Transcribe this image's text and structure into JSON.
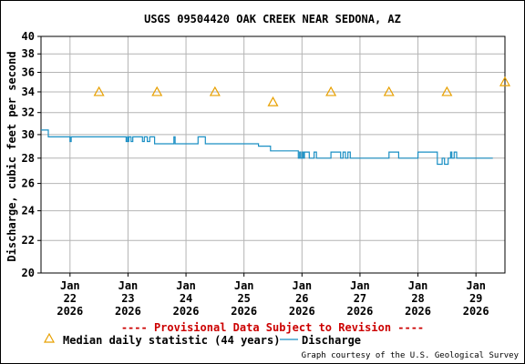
{
  "chart_data": {
    "type": "line",
    "title": "USGS 09504420 OAK CREEK NEAR SEDONA, AZ",
    "xlabel": "",
    "ylabel": "Discharge, cubic feet per second",
    "y_scale": "log",
    "ylim": [
      20,
      40
    ],
    "xlim": [
      "2026-01-21T12:00",
      "2026-01-29T12:00"
    ],
    "y_ticks": [
      20,
      22,
      24,
      26,
      28,
      30,
      32,
      34,
      36,
      38,
      40
    ],
    "x_ticks": [
      {
        "at": "2026-01-22T00:00",
        "line1": "Jan",
        "line2": "22",
        "line3": "2026"
      },
      {
        "at": "2026-01-23T00:00",
        "line1": "Jan",
        "line2": "23",
        "line3": "2026"
      },
      {
        "at": "2026-01-24T00:00",
        "line1": "Jan",
        "line2": "24",
        "line3": "2026"
      },
      {
        "at": "2026-01-25T00:00",
        "line1": "Jan",
        "line2": "25",
        "line3": "2026"
      },
      {
        "at": "2026-01-26T00:00",
        "line1": "Jan",
        "line2": "26",
        "line3": "2026"
      },
      {
        "at": "2026-01-27T00:00",
        "line1": "Jan",
        "line2": "27",
        "line3": "2026"
      },
      {
        "at": "2026-01-28T00:00",
        "line1": "Jan",
        "line2": "28",
        "line3": "2026"
      },
      {
        "at": "2026-01-29T00:00",
        "line1": "Jan",
        "line2": "29",
        "line3": "2026"
      }
    ],
    "grid": true,
    "series": [
      {
        "name": "Discharge",
        "color": "#1a8fc4",
        "kind": "step-line",
        "points": [
          [
            "2026-01-21T12:00",
            30.4
          ],
          [
            "2026-01-21T15:00",
            30.4
          ],
          [
            "2026-01-21T15:00",
            29.8
          ],
          [
            "2026-01-22T00:00",
            29.8
          ],
          [
            "2026-01-22T00:00",
            29.4
          ],
          [
            "2026-01-22T00:30",
            29.4
          ],
          [
            "2026-01-22T00:30",
            29.8
          ],
          [
            "2026-01-22T23:15",
            29.8
          ],
          [
            "2026-01-22T23:15",
            29.4
          ],
          [
            "2026-01-22T23:45",
            29.4
          ],
          [
            "2026-01-22T23:45",
            29.8
          ],
          [
            "2026-01-23T00:00",
            29.8
          ],
          [
            "2026-01-23T00:00",
            29.4
          ],
          [
            "2026-01-23T00:20",
            29.4
          ],
          [
            "2026-01-23T00:20",
            29.8
          ],
          [
            "2026-01-23T01:15",
            29.8
          ],
          [
            "2026-01-23T01:15",
            29.4
          ],
          [
            "2026-01-23T02:00",
            29.4
          ],
          [
            "2026-01-23T02:00",
            29.8
          ],
          [
            "2026-01-23T06:00",
            29.8
          ],
          [
            "2026-01-23T06:00",
            29.4
          ],
          [
            "2026-01-23T06:45",
            29.4
          ],
          [
            "2026-01-23T06:45",
            29.8
          ],
          [
            "2026-01-23T08:00",
            29.8
          ],
          [
            "2026-01-23T08:00",
            29.4
          ],
          [
            "2026-01-23T09:00",
            29.4
          ],
          [
            "2026-01-23T09:00",
            29.8
          ],
          [
            "2026-01-23T11:00",
            29.8
          ],
          [
            "2026-01-23T11:00",
            29.2
          ],
          [
            "2026-01-23T19:00",
            29.2
          ],
          [
            "2026-01-23T19:00",
            29.8
          ],
          [
            "2026-01-23T19:30",
            29.8
          ],
          [
            "2026-01-23T19:30",
            29.2
          ],
          [
            "2026-01-24T05:00",
            29.2
          ],
          [
            "2026-01-24T05:00",
            29.8
          ],
          [
            "2026-01-24T08:00",
            29.8
          ],
          [
            "2026-01-24T08:00",
            29.2
          ],
          [
            "2026-01-25T06:00",
            29.2
          ],
          [
            "2026-01-25T06:00",
            29.0
          ],
          [
            "2026-01-25T11:00",
            29.0
          ],
          [
            "2026-01-25T11:00",
            28.6
          ],
          [
            "2026-01-25T22:30",
            28.6
          ],
          [
            "2026-01-25T22:30",
            28.0
          ],
          [
            "2026-01-25T23:00",
            28.0
          ],
          [
            "2026-01-25T23:00",
            28.5
          ],
          [
            "2026-01-25T23:30",
            28.5
          ],
          [
            "2026-01-25T23:30",
            28.0
          ],
          [
            "2026-01-26T00:10",
            28.0
          ],
          [
            "2026-01-26T00:10",
            28.5
          ],
          [
            "2026-01-26T00:40",
            28.5
          ],
          [
            "2026-01-26T00:40",
            28.0
          ],
          [
            "2026-01-26T01:00",
            28.0
          ],
          [
            "2026-01-26T01:00",
            28.5
          ],
          [
            "2026-01-26T03:00",
            28.5
          ],
          [
            "2026-01-26T03:00",
            28.0
          ],
          [
            "2026-01-26T05:00",
            28.0
          ],
          [
            "2026-01-26T05:00",
            28.5
          ],
          [
            "2026-01-26T06:00",
            28.5
          ],
          [
            "2026-01-26T06:00",
            28.0
          ],
          [
            "2026-01-26T12:00",
            28.0
          ],
          [
            "2026-01-26T12:00",
            28.5
          ],
          [
            "2026-01-26T16:00",
            28.5
          ],
          [
            "2026-01-26T16:00",
            28.0
          ],
          [
            "2026-01-26T17:00",
            28.0
          ],
          [
            "2026-01-26T17:00",
            28.5
          ],
          [
            "2026-01-26T18:00",
            28.5
          ],
          [
            "2026-01-26T18:00",
            28.0
          ],
          [
            "2026-01-26T19:00",
            28.0
          ],
          [
            "2026-01-26T19:00",
            28.5
          ],
          [
            "2026-01-26T20:00",
            28.5
          ],
          [
            "2026-01-26T20:00",
            28.0
          ],
          [
            "2026-01-27T12:00",
            28.0
          ],
          [
            "2026-01-27T12:00",
            28.5
          ],
          [
            "2026-01-27T16:00",
            28.5
          ],
          [
            "2026-01-27T16:00",
            28.0
          ],
          [
            "2026-01-28T00:00",
            28.0
          ],
          [
            "2026-01-28T00:00",
            28.5
          ],
          [
            "2026-01-28T08:00",
            28.5
          ],
          [
            "2026-01-28T08:00",
            27.5
          ],
          [
            "2026-01-28T10:00",
            27.5
          ],
          [
            "2026-01-28T10:00",
            28.0
          ],
          [
            "2026-01-28T11:00",
            28.0
          ],
          [
            "2026-01-28T11:00",
            27.5
          ],
          [
            "2026-01-28T12:30",
            27.5
          ],
          [
            "2026-01-28T12:30",
            28.0
          ],
          [
            "2026-01-28T13:30",
            28.0
          ],
          [
            "2026-01-28T13:30",
            28.5
          ],
          [
            "2026-01-28T14:00",
            28.5
          ],
          [
            "2026-01-28T14:00",
            28.0
          ],
          [
            "2026-01-28T15:00",
            28.0
          ],
          [
            "2026-01-28T15:00",
            28.5
          ],
          [
            "2026-01-28T16:00",
            28.5
          ],
          [
            "2026-01-28T16:00",
            28.0
          ],
          [
            "2026-01-29T07:00",
            28.0
          ]
        ]
      },
      {
        "name": "Median daily statistic (44 years)",
        "color": "#e8a000",
        "kind": "triangle-markers",
        "points": [
          [
            "2026-01-22T12:00",
            34
          ],
          [
            "2026-01-23T12:00",
            34
          ],
          [
            "2026-01-24T12:00",
            34
          ],
          [
            "2026-01-25T12:00",
            33
          ],
          [
            "2026-01-26T12:00",
            34
          ],
          [
            "2026-01-27T12:00",
            34
          ],
          [
            "2026-01-28T12:00",
            34
          ],
          [
            "2026-01-29T12:00",
            35
          ]
        ]
      }
    ],
    "notice": "---- Provisional Data Subject to Revision ----",
    "notice_color": "#cc0000",
    "legend": [
      {
        "label": "Median daily statistic (44 years)",
        "marker": "triangle"
      },
      {
        "label": "Discharge",
        "marker": "line"
      }
    ],
    "credit": "Graph courtesy of the U.S. Geological Survey"
  }
}
